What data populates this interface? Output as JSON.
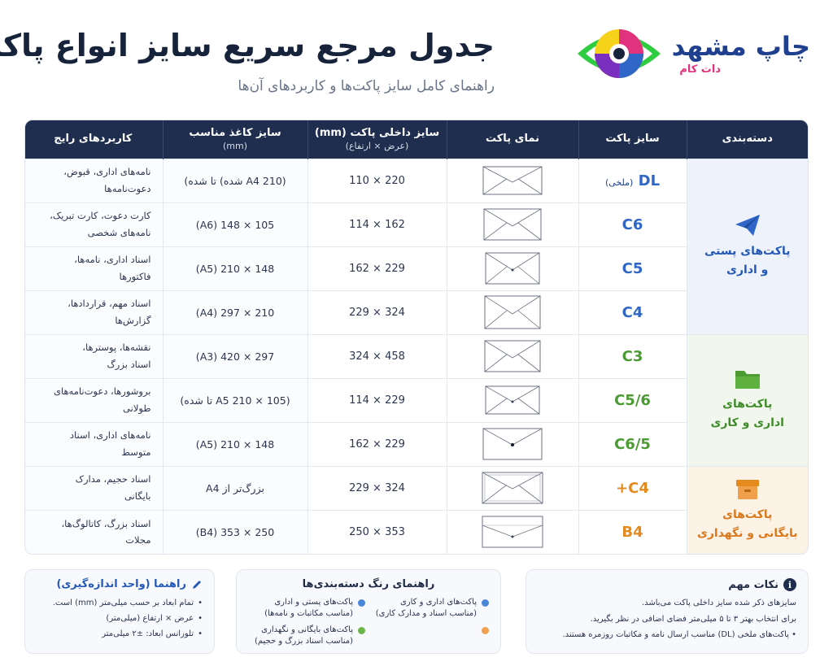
{
  "header": {
    "title": "جدول مرجع سریع سایز انواع پاکت",
    "subtitle": "راهنمای کامل سایز پاکت‌ها و کاربردهای آن‌ها"
  },
  "logo": {
    "text": "چاپ مشهد",
    "sub": "دات کام",
    "colors": [
      "#2ecc40",
      "#f7d21a",
      "#e0327d",
      "#2f66c7",
      "#7b2fbf"
    ]
  },
  "table": {
    "headers": {
      "category": "دسته‌بندی",
      "size": "سایز پاکت",
      "view": "نمای پاکت",
      "inner": "سایز داخلی پاکت (mm)",
      "inner_sub": "(عرض × ارتفاع)",
      "paper": "سایز کاغذ مناسب",
      "paper_sub": "(mm)",
      "uses": "کاربردهای رایج"
    },
    "categories": [
      {
        "label_1": "پاکت‌های پستی",
        "label_2": "و اداری",
        "icon": "paper-plane-icon",
        "color": "#2458b8"
      },
      {
        "label_1": "پاکت‌های",
        "label_2": "اداری و کاری",
        "icon": "folder-icon",
        "color": "#4b9a32"
      },
      {
        "label_1": "پاکت‌های",
        "label_2": "بایگانی و نگهداری",
        "icon": "archive-box-icon",
        "color": "#e58a1f"
      }
    ],
    "rows": [
      {
        "size": "DL",
        "size_note": "(ملخی)",
        "inner": "220 × 110",
        "paper": "(A4 210 شده) تا شده)",
        "uses_1": "نامه‌های اداری، قبوض،",
        "uses_2": "دعوت‌نامه‌ها"
      },
      {
        "size": "C6",
        "size_note": "",
        "inner": "162 × 114",
        "paper": "105 × 148 (A6)",
        "uses_1": "کارت دعوت، کارت تبریک،",
        "uses_2": "نامه‌های شخصی"
      },
      {
        "size": "C5",
        "size_note": "",
        "inner": "229 × 162",
        "paper": "148 × 210 (A5)",
        "uses_1": "اسناد اداری، نامه‌ها،",
        "uses_2": "فاکتورها"
      },
      {
        "size": "C4",
        "size_note": "",
        "inner": "324 × 229",
        "paper": "210 × 297 (A4)",
        "uses_1": "اسناد مهم، قراردادها،",
        "uses_2": "گزارش‌ها"
      },
      {
        "size": "C3",
        "size_note": "",
        "inner": "458 × 324",
        "paper": "297 × 420 (A3)",
        "uses_1": "نقشه‌ها، پوسترها،",
        "uses_2": "اسناد بزرگ"
      },
      {
        "size": "C5/6",
        "size_note": "",
        "inner": "229 × 114",
        "paper": "(A5 210 × 105 تا شده)",
        "uses_1": "بروشورها، دعوت‌نامه‌های",
        "uses_2": "طولانی"
      },
      {
        "size": "C6/5",
        "size_note": "",
        "inner": "229 × 162",
        "paper": "148 × 210 (A5)",
        "uses_1": "نامه‌های اداری، اسناد",
        "uses_2": "متوسط"
      },
      {
        "size": "C4+",
        "size_note": "",
        "inner": "324 × 229",
        "paper": "بزرگ‌تر از A4",
        "uses_1": "اسناد حجیم، مدارک",
        "uses_2": "بایگانی"
      },
      {
        "size": "B4",
        "size_note": "",
        "inner": "353 × 250",
        "paper": "250 × 353 (B4)",
        "uses_1": "اسناد بزرگ، کاتالوگ‌ها،",
        "uses_2": "مجلات"
      }
    ]
  },
  "notes": {
    "title": "نکات مهم",
    "items": [
      "سایزهای ذکر شده سایز داخلی پاکت می‌باشد.",
      "برای انتخاب بهتر ۳ تا ۵ میلی‌متر فضای اضافی در نظر بگیرید.",
      "• پاکت‌های ملخی (DL) مناسب ارسال نامه و مکاتبات روزمره هستند."
    ]
  },
  "legend": {
    "title": "راهنمای رنگ دسته‌بندی‌ها",
    "items": [
      {
        "label": "پاکت‌های پستی و اداری (مناسب مکاتبات و نامه‌ها)",
        "color": "#4a86d8"
      },
      {
        "label": "پاکت‌های اداری و کاری (مناسب اسناد و مدارک کاری)",
        "color": "#4a86d8"
      },
      {
        "label": "پاکت‌های بایگانی و نگهداری (مناسب اسناد بزرگ و حجیم)",
        "color": "#6bb64a"
      },
      {
        "label": "",
        "color": "#f0a050"
      }
    ]
  },
  "guide": {
    "title": "راهنما (واحد اندازه‌گیری)",
    "items": [
      "تمام ابعاد بر حسب میلی‌متر (mm) است.",
      "عرض × ارتفاع (میلی‌متر)",
      "تلورانس ابعاد: ±۲ میلی‌متر"
    ]
  }
}
